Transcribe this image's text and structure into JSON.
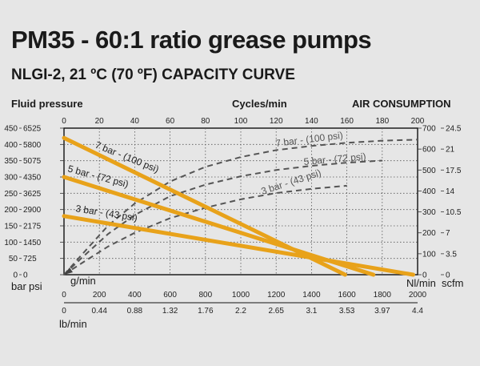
{
  "title": "PM35 - 60:1 ratio grease pumps",
  "subtitle": "NLGI-2, 21 ºC (70 ºF) CAPACITY CURVE",
  "chart_data": {
    "type": "line",
    "colors": {
      "pressure": "#e8a21a",
      "air": "#555555"
    },
    "left_axis": {
      "label": "Fluid pressure",
      "unit_bar": "bar",
      "unit_psi": "psi",
      "bar_ticks": [
        "450",
        "400",
        "350",
        "300",
        "250",
        "200",
        "150",
        "100",
        "50",
        "0"
      ],
      "psi_ticks": [
        "6525",
        "5800",
        "5075",
        "4350",
        "3625",
        "2900",
        "2175",
        "1450",
        "725",
        "0"
      ],
      "ylim_bar": [
        0,
        450
      ]
    },
    "top_axis": {
      "label": "Cycles/min",
      "ticks": [
        "0",
        "20",
        "40",
        "60",
        "80",
        "100",
        "120",
        "140",
        "160",
        "180",
        "200"
      ],
      "xlim": [
        0,
        200
      ]
    },
    "right_axis": {
      "label": "AIR CONSUMPTION",
      "nl_ticks": [
        "700",
        "600",
        "500",
        "400",
        "300",
        "200",
        "100",
        "0"
      ],
      "scfm_ticks": [
        "24.5",
        "21",
        "17.5",
        "14",
        "10.5",
        "7",
        "3.5",
        "0"
      ],
      "unit_nl": "Nl/min",
      "unit_scfm": "scfm",
      "ylim_nl": [
        0,
        700
      ]
    },
    "bottom_axis": {
      "unit_g": "g/min",
      "g_ticks": [
        "0",
        "200",
        "400",
        "600",
        "800",
        "1000",
        "1200",
        "1400",
        "1600",
        "1800",
        "2000"
      ],
      "unit_lb": "lb/min",
      "lb_ticks": [
        "0",
        "0.44",
        "0.88",
        "1.32",
        "1.76",
        "2.2",
        "2.65",
        "3.1",
        "3.53",
        "3.97",
        "4.4"
      ],
      "xlim_g": [
        0,
        2000
      ]
    },
    "pressure_series": [
      {
        "name": "7 bar - (100 psi)",
        "x_g_min": [
          0,
          1590
        ],
        "y_bar": [
          420,
          0
        ]
      },
      {
        "name": "5 bar - (72 psi)",
        "x_g_min": [
          0,
          1750
        ],
        "y_bar": [
          300,
          0
        ]
      },
      {
        "name": "3 bar - (43 psi)",
        "x_g_min": [
          0,
          1975
        ],
        "y_bar": [
          180,
          0
        ]
      }
    ],
    "air_series": [
      {
        "name": "7 bar - (100 psi)",
        "x_g_min": [
          0,
          100,
          250,
          400,
          600,
          800,
          1000,
          1200,
          1400,
          1600,
          1800,
          2000
        ],
        "y_nl_min": [
          0,
          95,
          235,
          340,
          445,
          515,
          562,
          595,
          615,
          630,
          640,
          645
        ]
      },
      {
        "name": "5 bar - (72 psi)",
        "x_g_min": [
          0,
          100,
          250,
          400,
          600,
          800,
          1000,
          1200,
          1400,
          1600,
          1800
        ],
        "y_nl_min": [
          0,
          80,
          195,
          285,
          375,
          430,
          470,
          500,
          520,
          535,
          545
        ]
      },
      {
        "name": "3 bar - (43 psi)",
        "x_g_min": [
          0,
          100,
          250,
          400,
          600,
          800,
          1000,
          1200,
          1400,
          1600
        ],
        "y_nl_min": [
          0,
          55,
          135,
          200,
          270,
          320,
          360,
          390,
          410,
          425
        ]
      }
    ]
  }
}
